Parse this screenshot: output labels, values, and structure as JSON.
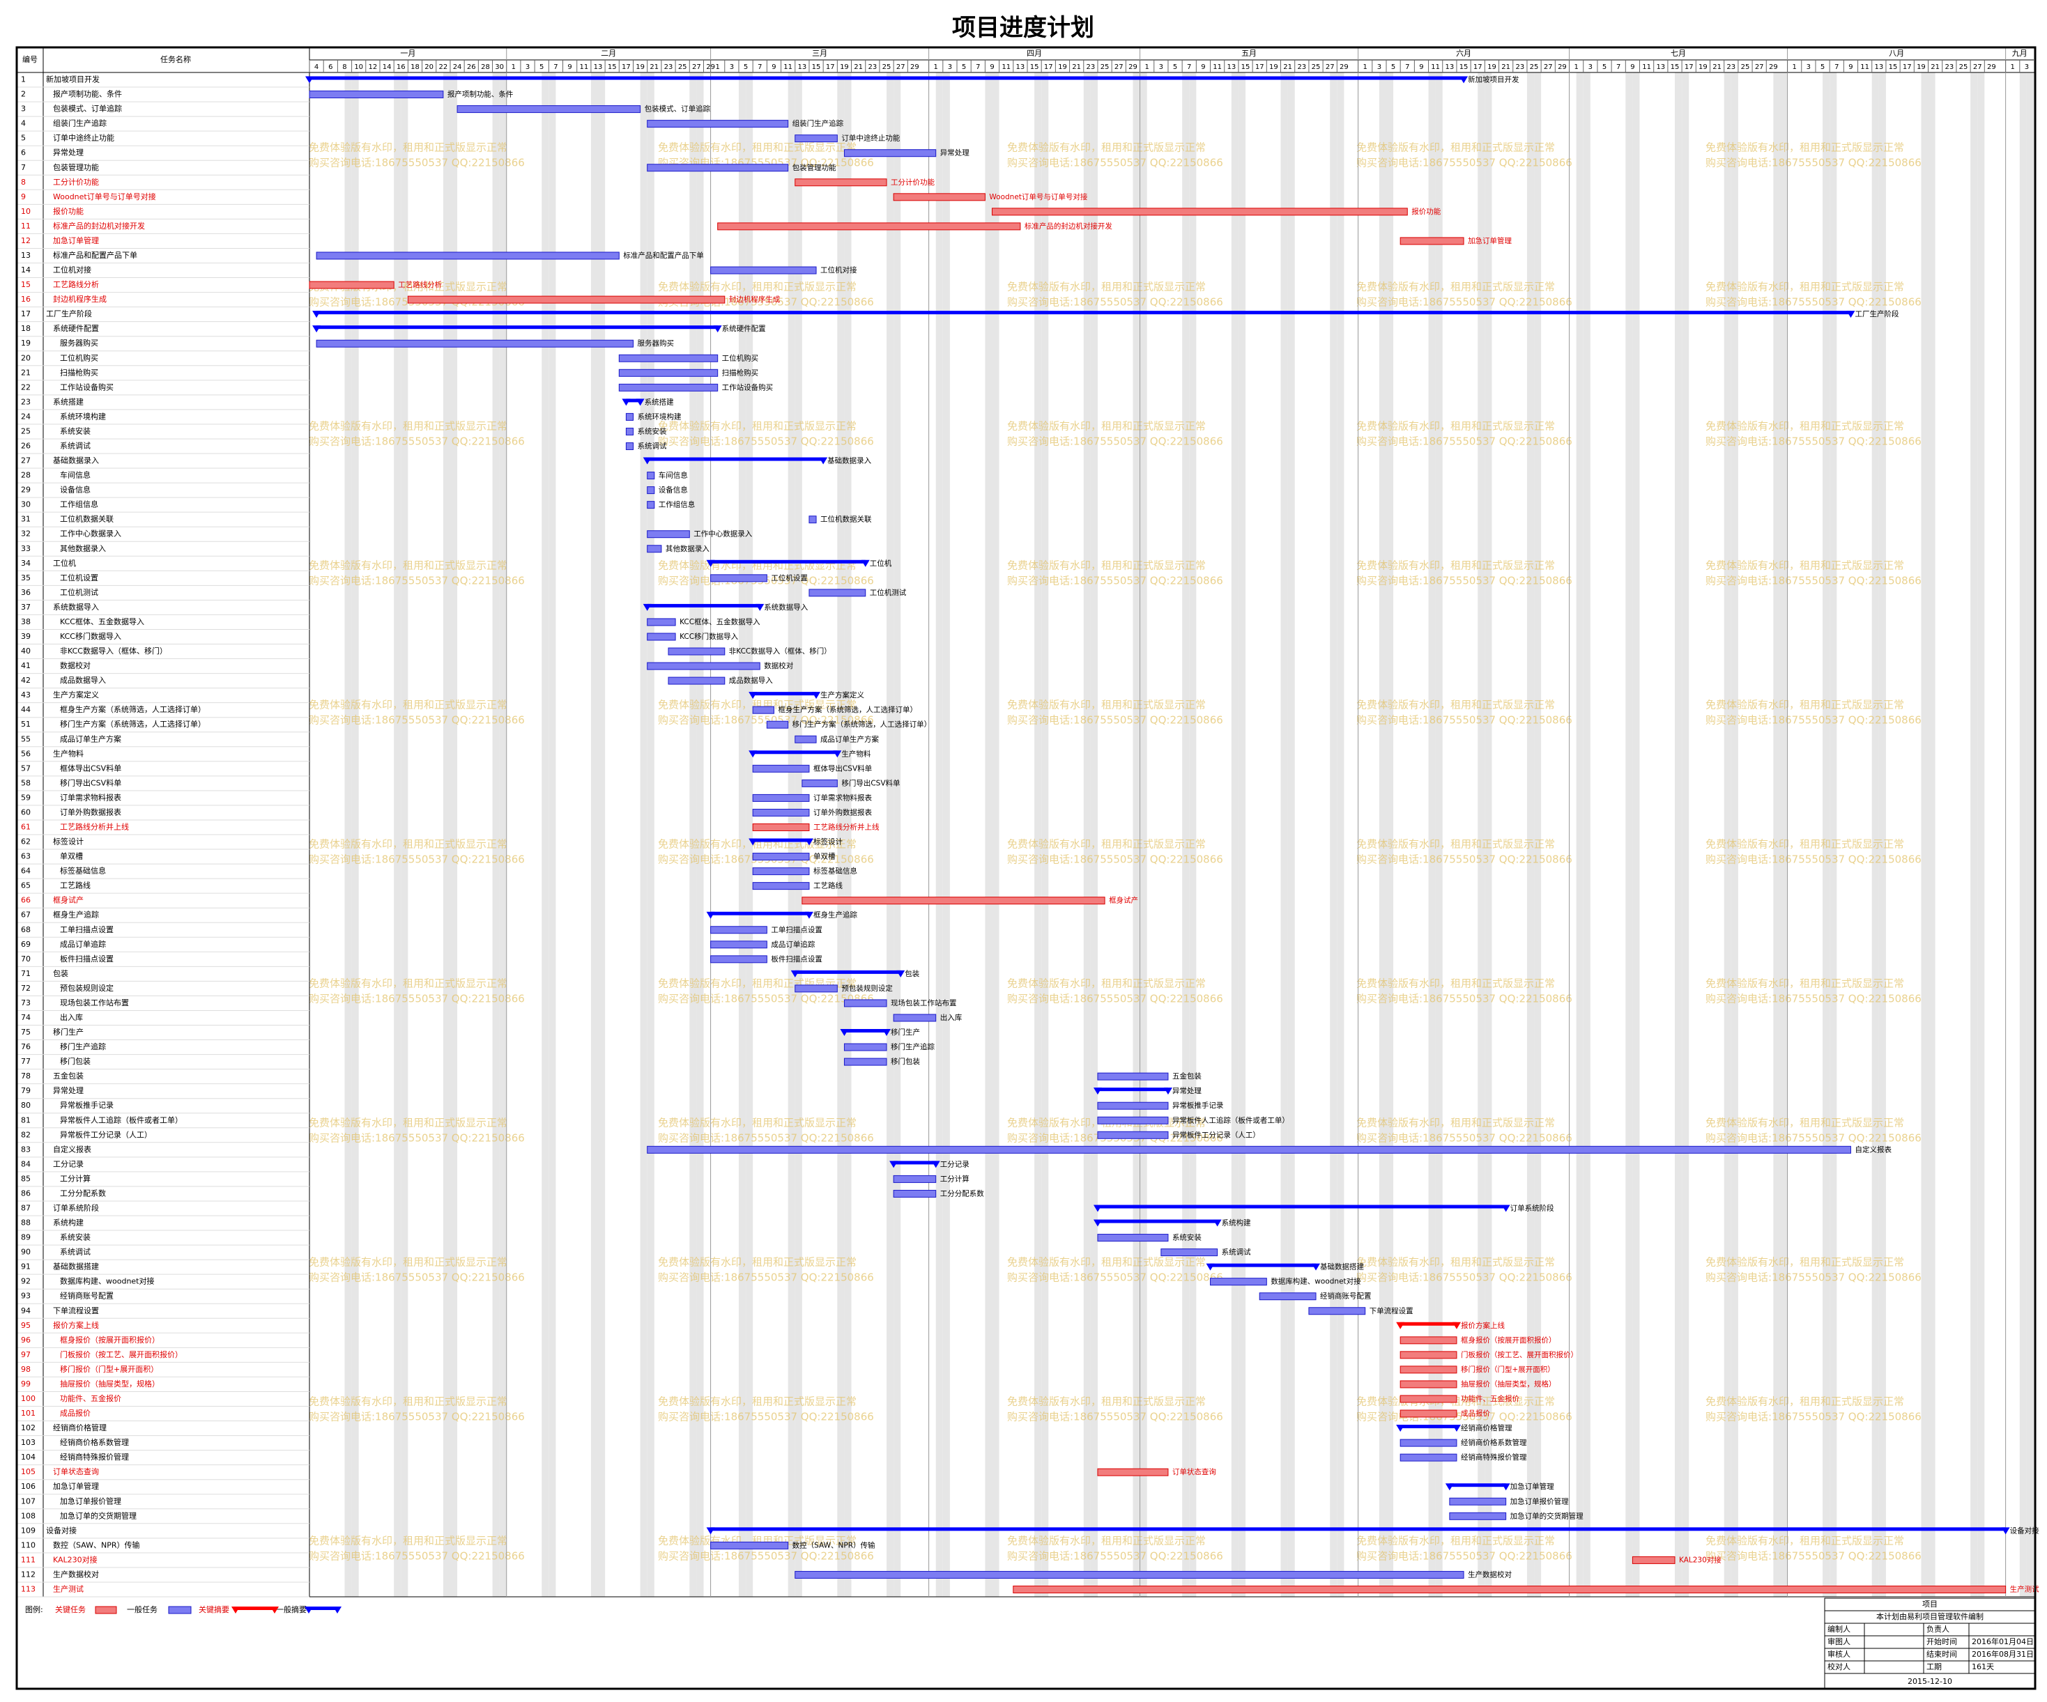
{
  "title": "项目进度计划",
  "header": {
    "id": "编号",
    "name": "任务名称"
  },
  "months": [
    {
      "name": "一月",
      "days": [
        4,
        6,
        8,
        10,
        12,
        14,
        16,
        18,
        20,
        22,
        24,
        26,
        28,
        30
      ]
    },
    {
      "name": "二月",
      "days": [
        1,
        3,
        5,
        7,
        9,
        11,
        13,
        15,
        17,
        19,
        21,
        23,
        25,
        27,
        29
      ]
    },
    {
      "name": "三月",
      "days": [
        1,
        3,
        5,
        7,
        9,
        11,
        13,
        15,
        17,
        19,
        21,
        23,
        25,
        27,
        29
      ]
    },
    {
      "name": "四月",
      "days": [
        1,
        3,
        5,
        7,
        9,
        11,
        13,
        15,
        17,
        19,
        21,
        23,
        25,
        27,
        29
      ]
    },
    {
      "name": "五月",
      "days": [
        1,
        3,
        5,
        7,
        9,
        11,
        13,
        15,
        17,
        19,
        21,
        23,
        25,
        27,
        29
      ]
    },
    {
      "name": "六月",
      "days": [
        1,
        3,
        5,
        7,
        9,
        11,
        13,
        15,
        17,
        19,
        21,
        23,
        25,
        27,
        29
      ]
    },
    {
      "name": "七月",
      "days": [
        1,
        3,
        5,
        7,
        9,
        11,
        13,
        15,
        17,
        19,
        21,
        23,
        25,
        27,
        29
      ]
    },
    {
      "name": "八月",
      "days": [
        1,
        3,
        5,
        7,
        9,
        11,
        13,
        15,
        17,
        19,
        21,
        23,
        25,
        27,
        29
      ]
    },
    {
      "name": "九月",
      "days": [
        1,
        3
      ]
    }
  ],
  "colors": {
    "task": "#7c7cf2",
    "task_edge": "#1a1ac8",
    "critical": "#f27c7c",
    "critical_edge": "#d80000",
    "summary": "#0000ff",
    "critical_summary": "#ff0000"
  },
  "tasks": [
    {
      "id": 1,
      "name": "新加坡项目开发",
      "level": 0,
      "kind": "summary",
      "start": "01-04",
      "end": "06-15"
    },
    {
      "id": 2,
      "name": "报产项制功能、条件",
      "level": 1,
      "kind": "task",
      "start": "01-04",
      "end": "01-22"
    },
    {
      "id": 3,
      "name": "包装模式、订单追踪",
      "level": 1,
      "kind": "task",
      "start": "01-25",
      "end": "02-19"
    },
    {
      "id": 4,
      "name": "组装门生产追踪",
      "level": 1,
      "kind": "task",
      "start": "02-21",
      "end": "03-11"
    },
    {
      "id": 5,
      "name": "订单中途终止功能",
      "level": 1,
      "kind": "task",
      "start": "03-13",
      "end": "03-18"
    },
    {
      "id": 6,
      "name": "异常处理",
      "level": 1,
      "kind": "task",
      "start": "03-20",
      "end": "04-01"
    },
    {
      "id": 7,
      "name": "包装管理功能",
      "level": 1,
      "kind": "task",
      "start": "02-21",
      "end": "03-11"
    },
    {
      "id": 8,
      "name": "工分计价功能",
      "level": 1,
      "kind": "critical",
      "start": "03-13",
      "end": "03-25"
    },
    {
      "id": 9,
      "name": "Woodnet订单号与订单号对接",
      "level": 1,
      "kind": "critical",
      "start": "03-27",
      "end": "04-08"
    },
    {
      "id": 10,
      "name": "报价功能",
      "level": 1,
      "kind": "critical",
      "start": "04-10",
      "end": "06-07"
    },
    {
      "id": 11,
      "name": "标准产品的封边机对接开发",
      "level": 1,
      "kind": "critical",
      "start": "03-02",
      "end": "04-13"
    },
    {
      "id": 12,
      "name": "加急订单管理",
      "level": 1,
      "kind": "critical",
      "start": "06-07",
      "end": "06-15"
    },
    {
      "id": 13,
      "name": "标准产品和配置产品下单",
      "level": 1,
      "kind": "task",
      "start": "01-05",
      "end": "02-16"
    },
    {
      "id": 14,
      "name": "工位机对接",
      "level": 1,
      "kind": "task",
      "start": "03-01",
      "end": "03-15"
    },
    {
      "id": 15,
      "name": "工艺路线分析",
      "level": 1,
      "kind": "critical",
      "start": "01-04",
      "end": "01-15"
    },
    {
      "id": 16,
      "name": "封边机程序生成",
      "level": 1,
      "kind": "critical",
      "start": "01-18",
      "end": "03-02"
    },
    {
      "id": 17,
      "name": "工厂生产阶段",
      "level": 0,
      "kind": "summary",
      "start": "01-05",
      "end": "08-09"
    },
    {
      "id": 18,
      "name": "系统硬件配置",
      "level": 1,
      "kind": "summary",
      "start": "01-05",
      "end": "03-01"
    },
    {
      "id": 19,
      "name": "服务器购买",
      "level": 2,
      "kind": "task",
      "start": "01-05",
      "end": "02-18"
    },
    {
      "id": 20,
      "name": "工位机购买",
      "level": 2,
      "kind": "task",
      "start": "02-17",
      "end": "03-01"
    },
    {
      "id": 21,
      "name": "扫描枪购买",
      "level": 2,
      "kind": "task",
      "start": "02-17",
      "end": "03-01"
    },
    {
      "id": 22,
      "name": "工作站设备购买",
      "level": 2,
      "kind": "task",
      "start": "02-17",
      "end": "03-01"
    },
    {
      "id": 23,
      "name": "系统搭建",
      "level": 1,
      "kind": "summary",
      "start": "02-18",
      "end": "02-19"
    },
    {
      "id": 24,
      "name": "系统环境构建",
      "level": 2,
      "kind": "task",
      "start": "02-18",
      "end": "02-18"
    },
    {
      "id": 25,
      "name": "系统安装",
      "level": 2,
      "kind": "task",
      "start": "02-18",
      "end": "02-18"
    },
    {
      "id": 26,
      "name": "系统调试",
      "level": 2,
      "kind": "task",
      "start": "02-18",
      "end": "02-18"
    },
    {
      "id": 27,
      "name": "基础数据录入",
      "level": 1,
      "kind": "summary",
      "start": "02-21",
      "end": "03-16"
    },
    {
      "id": 28,
      "name": "车间信息",
      "level": 2,
      "kind": "task",
      "start": "02-21",
      "end": "02-21"
    },
    {
      "id": 29,
      "name": "设备信息",
      "level": 2,
      "kind": "task",
      "start": "02-21",
      "end": "02-21"
    },
    {
      "id": 30,
      "name": "工作组信息",
      "level": 2,
      "kind": "task",
      "start": "02-21",
      "end": "02-21"
    },
    {
      "id": 31,
      "name": "工位机数据关联",
      "level": 2,
      "kind": "task",
      "start": "03-15",
      "end": "03-15"
    },
    {
      "id": 32,
      "name": "工作中心数据录入",
      "level": 2,
      "kind": "task",
      "start": "02-21",
      "end": "02-26"
    },
    {
      "id": 33,
      "name": "其他数据录入",
      "level": 2,
      "kind": "task",
      "start": "02-21",
      "end": "02-22"
    },
    {
      "id": 34,
      "name": "工位机",
      "level": 1,
      "kind": "summary",
      "start": "03-01",
      "end": "03-22"
    },
    {
      "id": 35,
      "name": "工位机设置",
      "level": 2,
      "kind": "task",
      "start": "03-01",
      "end": "03-08"
    },
    {
      "id": 36,
      "name": "工位机测试",
      "level": 2,
      "kind": "task",
      "start": "03-15",
      "end": "03-22"
    },
    {
      "id": 37,
      "name": "系统数据导入",
      "level": 1,
      "kind": "summary",
      "start": "02-21",
      "end": "03-07"
    },
    {
      "id": 38,
      "name": "KCC框体、五金数据导入",
      "level": 2,
      "kind": "task",
      "start": "02-21",
      "end": "02-24"
    },
    {
      "id": 39,
      "name": "KCC移门数据导入",
      "level": 2,
      "kind": "task",
      "start": "02-21",
      "end": "02-24"
    },
    {
      "id": 40,
      "name": "非KCC数据导入（框体、移门）",
      "level": 2,
      "kind": "task",
      "start": "02-24",
      "end": "03-02"
    },
    {
      "id": 41,
      "name": "数据校对",
      "level": 2,
      "kind": "task",
      "start": "02-21",
      "end": "03-07"
    },
    {
      "id": 42,
      "name": "成品数据导入",
      "level": 2,
      "kind": "task",
      "start": "02-24",
      "end": "03-02"
    },
    {
      "id": 43,
      "name": "生产方案定义",
      "level": 1,
      "kind": "summary",
      "start": "03-07",
      "end": "03-15"
    },
    {
      "id": 44,
      "name": "框身生产方案（系统筛选，人工选择订单）",
      "level": 2,
      "kind": "task",
      "start": "03-07",
      "end": "03-09"
    },
    {
      "id": 51,
      "name": "移门生产方案（系统筛选，人工选择订单）",
      "level": 2,
      "kind": "task",
      "start": "03-09",
      "end": "03-11"
    },
    {
      "id": 55,
      "name": "成品订单生产方案",
      "level": 2,
      "kind": "task",
      "start": "03-13",
      "end": "03-15"
    },
    {
      "id": 56,
      "name": "生产物料",
      "level": 1,
      "kind": "summary",
      "start": "03-07",
      "end": "03-18"
    },
    {
      "id": 57,
      "name": "框体导出CSV料单",
      "level": 2,
      "kind": "task",
      "start": "03-07",
      "end": "03-14"
    },
    {
      "id": 58,
      "name": "移门导出CSV料单",
      "level": 2,
      "kind": "task",
      "start": "03-14",
      "end": "03-18"
    },
    {
      "id": 59,
      "name": "订单需求物料报表",
      "level": 2,
      "kind": "task",
      "start": "03-07",
      "end": "03-14"
    },
    {
      "id": 60,
      "name": "订单外购数据报表",
      "level": 2,
      "kind": "task",
      "start": "03-07",
      "end": "03-14"
    },
    {
      "id": 61,
      "name": "工艺路线分析并上线",
      "level": 2,
      "kind": "critical",
      "start": "03-07",
      "end": "03-14"
    },
    {
      "id": 62,
      "name": "标签设计",
      "level": 1,
      "kind": "summary",
      "start": "03-07",
      "end": "03-14"
    },
    {
      "id": 63,
      "name": "单双槽",
      "level": 2,
      "kind": "task",
      "start": "03-07",
      "end": "03-14"
    },
    {
      "id": 64,
      "name": "标签基础信息",
      "level": 2,
      "kind": "task",
      "start": "03-07",
      "end": "03-14"
    },
    {
      "id": 65,
      "name": "工艺路线",
      "level": 2,
      "kind": "task",
      "start": "03-07",
      "end": "03-14"
    },
    {
      "id": 66,
      "name": "框身试产",
      "level": 1,
      "kind": "critical",
      "start": "03-14",
      "end": "04-25"
    },
    {
      "id": 67,
      "name": "框身生产追踪",
      "level": 1,
      "kind": "summary",
      "start": "03-01",
      "end": "03-14"
    },
    {
      "id": 68,
      "name": "工单扫描点设置",
      "level": 2,
      "kind": "task",
      "start": "03-01",
      "end": "03-08"
    },
    {
      "id": 69,
      "name": "成品订单追踪",
      "level": 2,
      "kind": "task",
      "start": "03-01",
      "end": "03-08"
    },
    {
      "id": 70,
      "name": "板件扫描点设置",
      "level": 2,
      "kind": "task",
      "start": "03-01",
      "end": "03-08"
    },
    {
      "id": 71,
      "name": "包装",
      "level": 1,
      "kind": "summary",
      "start": "03-13",
      "end": "03-27"
    },
    {
      "id": 72,
      "name": "预包装规则设定",
      "level": 2,
      "kind": "task",
      "start": "03-13",
      "end": "03-18"
    },
    {
      "id": 73,
      "name": "现场包装工作站布置",
      "level": 2,
      "kind": "task",
      "start": "03-20",
      "end": "03-25"
    },
    {
      "id": 74,
      "name": "出入库",
      "level": 2,
      "kind": "task",
      "start": "03-27",
      "end": "04-01"
    },
    {
      "id": 75,
      "name": "移门生产",
      "level": 1,
      "kind": "summary",
      "start": "03-20",
      "end": "03-25"
    },
    {
      "id": 76,
      "name": "移门生产追踪",
      "level": 2,
      "kind": "task",
      "start": "03-20",
      "end": "03-25"
    },
    {
      "id": 77,
      "name": "移门包装",
      "level": 2,
      "kind": "task",
      "start": "03-20",
      "end": "03-25"
    },
    {
      "id": 78,
      "name": "五金包装",
      "level": 1,
      "kind": "task",
      "start": "04-25",
      "end": "05-04"
    },
    {
      "id": 79,
      "name": "异常处理",
      "level": 1,
      "kind": "summary",
      "start": "04-25",
      "end": "05-04"
    },
    {
      "id": 80,
      "name": "异常板推手记录",
      "level": 2,
      "kind": "task",
      "start": "04-25",
      "end": "05-04"
    },
    {
      "id": 81,
      "name": "异常板件人工追踪（板件或者工单）",
      "level": 2,
      "kind": "task",
      "start": "04-25",
      "end": "05-04"
    },
    {
      "id": 82,
      "name": "异常板件工分记录（人工）",
      "level": 2,
      "kind": "task",
      "start": "04-25",
      "end": "05-04"
    },
    {
      "id": 83,
      "name": "自定义报表",
      "level": 1,
      "kind": "task",
      "start": "02-21",
      "end": "08-09"
    },
    {
      "id": 84,
      "name": "工分记录",
      "level": 1,
      "kind": "summary",
      "start": "03-27",
      "end": "04-01"
    },
    {
      "id": 85,
      "name": "工分计算",
      "level": 2,
      "kind": "task",
      "start": "03-27",
      "end": "04-01"
    },
    {
      "id": 86,
      "name": "工分分配系数",
      "level": 2,
      "kind": "task",
      "start": "03-27",
      "end": "04-01"
    },
    {
      "id": 87,
      "name": "订单系统阶段",
      "level": 1,
      "kind": "summary",
      "start": "04-25",
      "end": "06-21"
    },
    {
      "id": 88,
      "name": "系统构建",
      "level": 1,
      "kind": "summary",
      "start": "04-25",
      "end": "05-11"
    },
    {
      "id": 89,
      "name": "系统安装",
      "level": 2,
      "kind": "task",
      "start": "04-25",
      "end": "05-04"
    },
    {
      "id": 90,
      "name": "系统调试",
      "level": 2,
      "kind": "task",
      "start": "05-04",
      "end": "05-11"
    },
    {
      "id": 91,
      "name": "基础数据搭建",
      "level": 1,
      "kind": "summary",
      "start": "05-11",
      "end": "05-25"
    },
    {
      "id": 92,
      "name": "数据库构建、woodnet对接",
      "level": 2,
      "kind": "task",
      "start": "05-11",
      "end": "05-18"
    },
    {
      "id": 93,
      "name": "经销商账号配置",
      "level": 2,
      "kind": "task",
      "start": "05-18",
      "end": "05-25"
    },
    {
      "id": 94,
      "name": "下单流程设置",
      "level": 1,
      "kind": "task",
      "start": "05-25",
      "end": "06-01"
    },
    {
      "id": 95,
      "name": "报价方案上线",
      "level": 1,
      "kind": "critical-summary",
      "start": "06-07",
      "end": "06-14"
    },
    {
      "id": 96,
      "name": "框身报价（按展开面积报价）",
      "level": 2,
      "kind": "critical",
      "start": "06-07",
      "end": "06-14"
    },
    {
      "id": 97,
      "name": "门板报价（按工艺、展开面积报价）",
      "level": 2,
      "kind": "critical",
      "start": "06-07",
      "end": "06-14"
    },
    {
      "id": 98,
      "name": "移门报价（门型+展开面积）",
      "level": 2,
      "kind": "critical",
      "start": "06-07",
      "end": "06-14"
    },
    {
      "id": 99,
      "name": "抽屉报价（抽屉类型，规格）",
      "level": 2,
      "kind": "critical",
      "start": "06-07",
      "end": "06-14"
    },
    {
      "id": 100,
      "name": "功能件、五金报价",
      "level": 2,
      "kind": "critical",
      "start": "06-07",
      "end": "06-14"
    },
    {
      "id": 101,
      "name": "成品报价",
      "level": 2,
      "kind": "critical",
      "start": "06-07",
      "end": "06-14"
    },
    {
      "id": 102,
      "name": "经销商价格管理",
      "level": 1,
      "kind": "summary",
      "start": "06-07",
      "end": "06-14"
    },
    {
      "id": 103,
      "name": "经销商价格系数管理",
      "level": 2,
      "kind": "task",
      "start": "06-07",
      "end": "06-14"
    },
    {
      "id": 104,
      "name": "经销商特殊报价管理",
      "level": 2,
      "kind": "task",
      "start": "06-07",
      "end": "06-14"
    },
    {
      "id": 105,
      "name": "订单状态查询",
      "level": 1,
      "kind": "critical",
      "start": "04-25",
      "end": "05-04"
    },
    {
      "id": 106,
      "name": "加急订单管理",
      "level": 1,
      "kind": "summary",
      "start": "06-14",
      "end": "06-21"
    },
    {
      "id": 107,
      "name": "加急订单报价管理",
      "level": 2,
      "kind": "task",
      "start": "06-14",
      "end": "06-21"
    },
    {
      "id": 108,
      "name": "加急订单的交货期管理",
      "level": 2,
      "kind": "task",
      "start": "06-14",
      "end": "06-21"
    },
    {
      "id": 109,
      "name": "设备对接",
      "level": 0,
      "kind": "summary",
      "start": "03-01",
      "end": "08-31"
    },
    {
      "id": 110,
      "name": "数控（SAW、NPR）传输",
      "level": 1,
      "kind": "task",
      "start": "03-01",
      "end": "03-11"
    },
    {
      "id": 111,
      "name": "KAL230对接",
      "level": 1,
      "kind": "critical",
      "start": "07-10",
      "end": "07-15"
    },
    {
      "id": 112,
      "name": "生产数据校对",
      "level": 1,
      "kind": "task",
      "start": "03-13",
      "end": "06-15"
    },
    {
      "id": 113,
      "name": "生产测试",
      "level": 1,
      "kind": "critical",
      "start": "04-13",
      "end": "08-31"
    }
  ],
  "legend": {
    "title": "图例:",
    "critical": "关键任务",
    "task": "一般任务",
    "critical_summary": "关键摘要",
    "summary": "一般摘要"
  },
  "watermark": [
    "免费体验版有水印，租用和正式版显示正常",
    "购买咨询电话:18675550537 QQ:22150866"
  ],
  "footer": {
    "title": "项目",
    "note": "本计划由易利项目管理软件编制",
    "rows": [
      {
        "label": "编制人",
        "label2": "负责人"
      },
      {
        "label": "审图人",
        "label2": "开始时间",
        "value2": "2016年01月04日"
      },
      {
        "label": "审核人",
        "label2": "结束时间",
        "value2": "2016年08月31日"
      },
      {
        "label": "校对人",
        "label2": "工期",
        "value2": "161天"
      }
    ],
    "date": "2015-12-10"
  }
}
